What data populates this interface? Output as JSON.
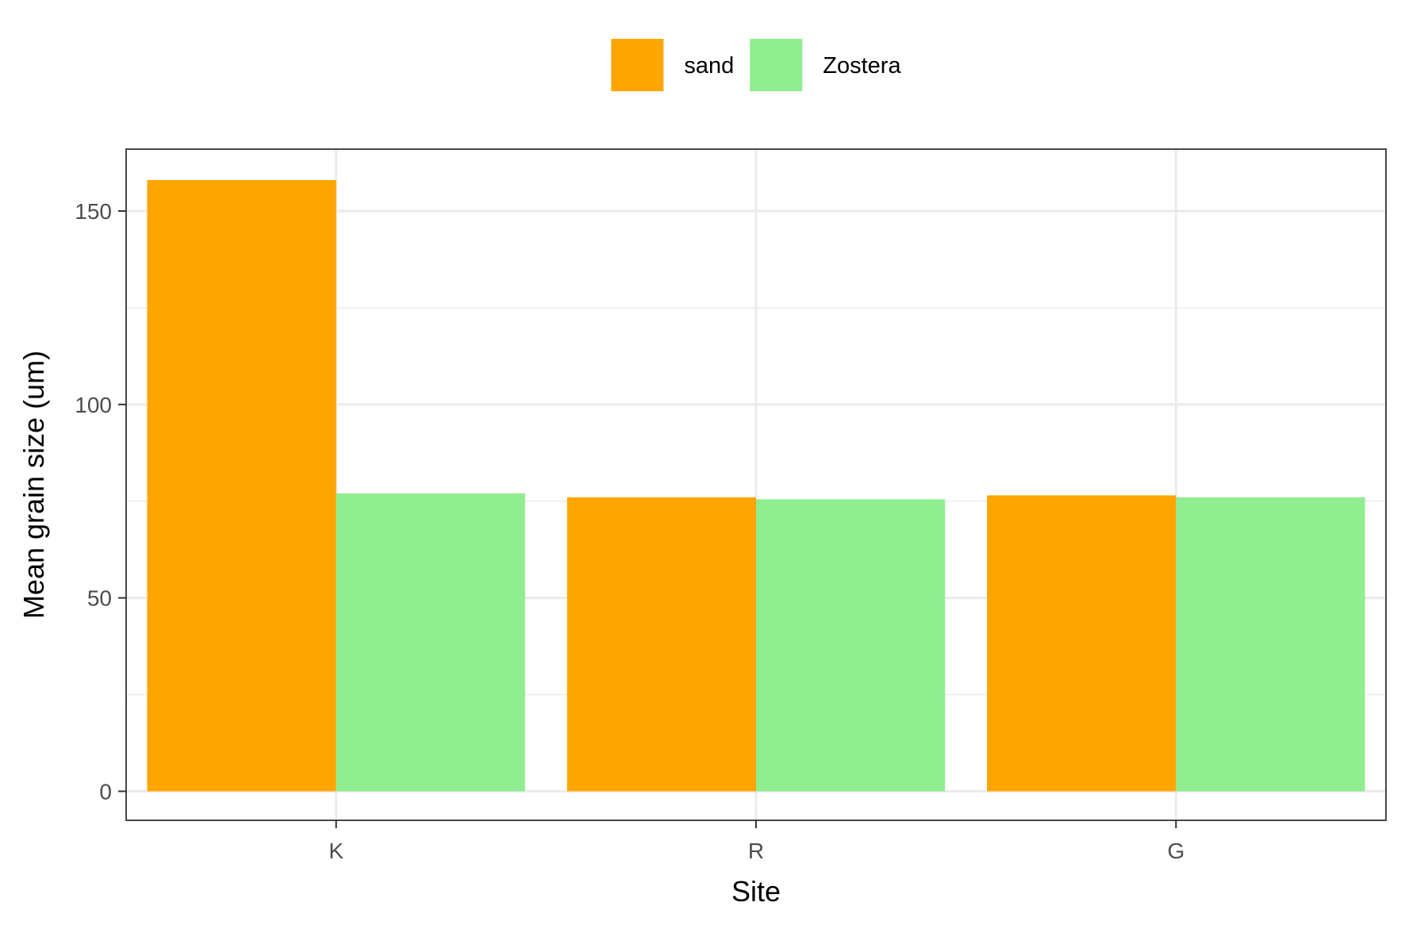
{
  "chart_data": {
    "type": "bar",
    "categories": [
      "K",
      "R",
      "G"
    ],
    "series": [
      {
        "name": "sand",
        "color": "#FFA500",
        "values": [
          158,
          76,
          76.5
        ]
      },
      {
        "name": "Zostera",
        "color": "#90EE90",
        "values": [
          77,
          75.5,
          76
        ]
      }
    ],
    "xlabel": "Site",
    "ylabel": "Mean grain size (um)",
    "ylim": [
      -7.5,
      166
    ],
    "yticks": [
      0,
      50,
      100,
      150
    ],
    "grid": true,
    "legend_position": "top"
  }
}
